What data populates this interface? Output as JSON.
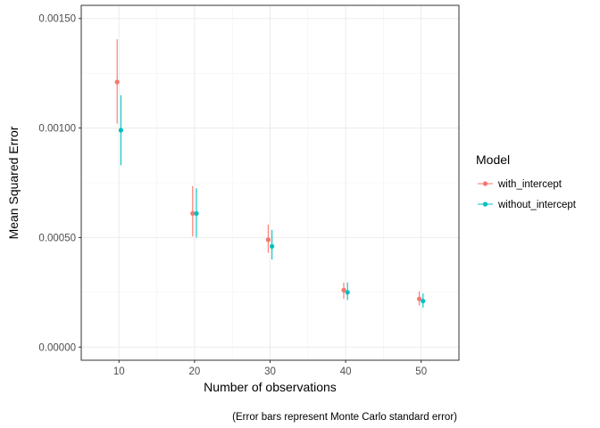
{
  "chart_data": {
    "type": "scatter",
    "xlabel": "Number of observations",
    "ylabel": "Mean Squared Error",
    "caption": "(Error bars represent Monte Carlo standard error)",
    "xlim": [
      5,
      55
    ],
    "ylim": [
      -6e-05,
      0.00156
    ],
    "x_ticks": [
      10,
      20,
      30,
      40,
      50
    ],
    "x_tick_labels": [
      "10",
      "20",
      "30",
      "40",
      "50"
    ],
    "y_ticks": [
      0.0,
      0.0005,
      0.001,
      0.0015
    ],
    "y_tick_labels": [
      "0.00000",
      "0.00050",
      "0.00100",
      "0.00150"
    ],
    "grid": true,
    "dodge": 0.5,
    "legend": {
      "title": "Model",
      "position": "right",
      "entries": [
        "with_intercept",
        "without_intercept"
      ]
    },
    "series": [
      {
        "name": "with_intercept",
        "color": "#F8766D",
        "x": [
          10,
          20,
          30,
          40,
          50
        ],
        "y": [
          0.00121,
          0.00061,
          0.00049,
          0.00026,
          0.00022
        ],
        "ymin": [
          0.00102,
          0.000505,
          0.00043,
          0.00022,
          0.00019
        ],
        "ymax": [
          0.001405,
          0.000735,
          0.00056,
          0.000295,
          0.000255
        ]
      },
      {
        "name": "without_intercept",
        "color": "#00BFC4",
        "x": [
          10,
          20,
          30,
          40,
          50
        ],
        "y": [
          0.00099,
          0.00061,
          0.00046,
          0.00025,
          0.00021
        ],
        "ymin": [
          0.00083,
          0.0005,
          0.0004,
          0.000215,
          0.00018
        ],
        "ymax": [
          0.00115,
          0.000725,
          0.000535,
          0.000295,
          0.000245
        ]
      }
    ]
  }
}
